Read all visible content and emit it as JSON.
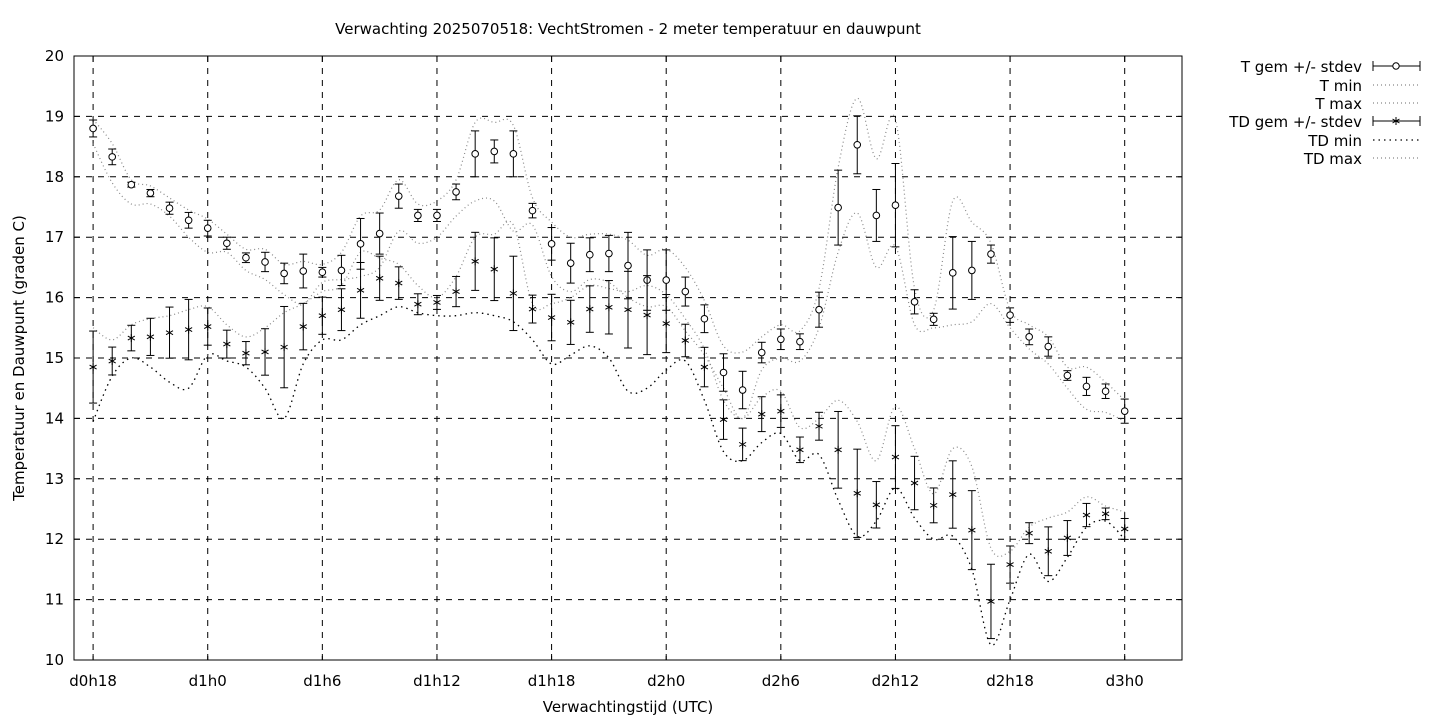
{
  "chart_data": {
    "type": "line",
    "title": "Verwachting 2025070518: VechtStromen - 2 meter temperatuur en dauwpunt",
    "xlabel": "Verwachtingstijd (UTC)",
    "ylabel": "Temperatuur en Dauwpunt (graden C)",
    "xlim": [
      17,
      75
    ],
    "ylim": [
      10,
      20
    ],
    "grid": true,
    "legend_position": "top-right-outside",
    "x_ticks": [
      {
        "v": 18,
        "label": "d0h18"
      },
      {
        "v": 24,
        "label": "d1h0"
      },
      {
        "v": 30,
        "label": "d1h6"
      },
      {
        "v": 36,
        "label": "d1h12"
      },
      {
        "v": 42,
        "label": "d1h18"
      },
      {
        "v": 48,
        "label": "d2h0"
      },
      {
        "v": 54,
        "label": "d2h6"
      },
      {
        "v": 60,
        "label": "d2h12"
      },
      {
        "v": 66,
        "label": "d2h18"
      },
      {
        "v": 72,
        "label": "d3h0"
      }
    ],
    "y_ticks": [
      10,
      11,
      12,
      13,
      14,
      15,
      16,
      17,
      18,
      19,
      20
    ],
    "x": [
      18,
      19,
      20,
      21,
      22,
      23,
      24,
      25,
      26,
      27,
      28,
      29,
      30,
      31,
      32,
      33,
      34,
      35,
      36,
      37,
      38,
      39,
      40,
      41,
      42,
      43,
      44,
      45,
      46,
      47,
      48,
      49,
      50,
      51,
      52,
      53,
      54,
      55,
      56,
      57,
      58,
      59,
      60,
      61,
      62,
      63,
      64,
      65,
      66,
      67,
      68,
      69,
      70,
      71,
      72
    ],
    "legend": {
      "t_mean": "T gem +/- stdev",
      "t_min": "T min",
      "t_max": "T max",
      "td_mean": "TD gem +/- stdev",
      "td_min": "TD min",
      "td_max": "TD max"
    },
    "series": [
      {
        "name": "T gem +/- stdev",
        "marker": "circle",
        "values": [
          18.8,
          18.33,
          17.87,
          17.73,
          17.48,
          17.28,
          17.15,
          16.9,
          16.66,
          16.59,
          16.4,
          16.44,
          16.42,
          16.45,
          16.89,
          17.06,
          17.68,
          17.36,
          17.36,
          17.75,
          18.38,
          18.42,
          18.38,
          17.44,
          16.89,
          16.57,
          16.71,
          16.73,
          16.53,
          16.29,
          16.29,
          16.1,
          15.65,
          14.76,
          14.47,
          15.09,
          15.31,
          15.27,
          15.8,
          17.49,
          18.53,
          17.36,
          17.53,
          15.93,
          15.64,
          16.41,
          16.45,
          16.72,
          15.71,
          15.35,
          15.19,
          14.71,
          14.53,
          14.45,
          14.12
        ],
        "stdev": [
          0.14,
          0.13,
          0.04,
          0.06,
          0.1,
          0.13,
          0.13,
          0.1,
          0.08,
          0.16,
          0.17,
          0.28,
          0.08,
          0.25,
          0.42,
          0.34,
          0.2,
          0.1,
          0.1,
          0.13,
          0.38,
          0.19,
          0.38,
          0.12,
          0.27,
          0.33,
          0.28,
          0.3,
          0.55,
          0.5,
          0.5,
          0.24,
          0.23,
          0.31,
          0.31,
          0.17,
          0.17,
          0.13,
          0.29,
          0.62,
          0.48,
          0.43,
          0.69,
          0.2,
          0.1,
          0.6,
          0.48,
          0.15,
          0.12,
          0.13,
          0.16,
          0.08,
          0.15,
          0.12,
          0.2
        ]
      },
      {
        "name": "T min",
        "values": [
          18.55,
          17.9,
          17.55,
          17.55,
          17.35,
          17.0,
          16.75,
          16.75,
          16.45,
          16.3,
          16.05,
          15.9,
          16.25,
          16.3,
          16.35,
          16.5,
          17.1,
          16.9,
          17.0,
          17.35,
          17.6,
          17.6,
          17.1,
          17.2,
          16.35,
          16.1,
          16.3,
          16.25,
          16.0,
          15.85,
          15.85,
          15.45,
          15.05,
          14.5,
          14.0,
          14.8,
          15.0,
          14.95,
          15.5,
          16.75,
          17.4,
          16.5,
          16.85,
          15.55,
          15.5,
          15.55,
          15.6,
          15.9,
          15.5,
          15.15,
          14.9,
          14.5,
          14.15,
          14.1,
          13.95
        ]
      },
      {
        "name": "T max",
        "values": [
          18.95,
          18.55,
          17.95,
          17.85,
          17.65,
          17.45,
          17.3,
          17.05,
          16.8,
          16.8,
          16.55,
          16.6,
          16.55,
          16.75,
          17.35,
          17.45,
          17.95,
          17.55,
          17.6,
          17.95,
          18.9,
          18.9,
          18.85,
          17.65,
          17.25,
          17.0,
          17.05,
          17.05,
          16.95,
          16.7,
          16.8,
          16.5,
          15.95,
          15.2,
          15.1,
          15.35,
          15.55,
          15.45,
          16.15,
          18.15,
          19.3,
          18.3,
          18.95,
          16.15,
          15.8,
          17.6,
          17.25,
          16.9,
          15.8,
          15.55,
          15.35,
          14.85,
          14.85,
          14.6,
          14.3
        ]
      },
      {
        "name": "TD gem +/- stdev",
        "marker": "star",
        "values": [
          14.85,
          14.95,
          15.33,
          15.35,
          15.42,
          15.47,
          15.52,
          15.23,
          15.08,
          15.1,
          15.18,
          15.52,
          15.7,
          15.8,
          16.12,
          16.32,
          16.24,
          15.89,
          15.92,
          16.1,
          16.6,
          16.47,
          16.07,
          15.81,
          15.67,
          15.59,
          15.81,
          15.84,
          15.8,
          15.71,
          15.57,
          15.29,
          14.85,
          13.98,
          13.57,
          14.07,
          14.12,
          13.48,
          13.87,
          13.48,
          12.76,
          12.57,
          13.36,
          12.93,
          12.56,
          12.74,
          12.15,
          10.97,
          11.58,
          12.1,
          11.8,
          12.02,
          12.4,
          12.42,
          12.17
        ]
      },
      {
        "name": "TD min",
        "values": [
          13.95,
          14.7,
          15.0,
          14.85,
          14.6,
          14.5,
          15.05,
          14.95,
          14.85,
          14.5,
          14.0,
          14.9,
          15.3,
          15.3,
          15.55,
          15.7,
          15.85,
          15.75,
          15.7,
          15.7,
          15.75,
          15.7,
          15.6,
          15.3,
          14.9,
          15.05,
          15.2,
          15.0,
          14.45,
          14.5,
          14.8,
          14.95,
          14.3,
          13.45,
          13.3,
          13.6,
          13.75,
          13.3,
          13.4,
          12.65,
          12.05,
          12.3,
          12.85,
          12.35,
          12.0,
          12.05,
          11.5,
          10.25,
          11.0,
          11.75,
          11.3,
          11.7,
          12.2,
          12.3,
          12.0
        ]
      },
      {
        "name": "TD max",
        "values": [
          15.5,
          15.3,
          15.55,
          15.65,
          15.7,
          15.8,
          15.85,
          15.55,
          15.35,
          15.5,
          15.75,
          15.9,
          16.1,
          16.2,
          16.75,
          16.65,
          16.55,
          16.2,
          16.0,
          16.35,
          17.0,
          17.05,
          17.2,
          15.9,
          15.9,
          16.0,
          16.2,
          16.15,
          16.1,
          16.2,
          16.05,
          15.65,
          15.15,
          14.3,
          14.0,
          14.35,
          14.45,
          13.85,
          14.0,
          14.3,
          13.95,
          13.3,
          14.2,
          13.5,
          12.75,
          13.5,
          13.2,
          11.85,
          11.8,
          12.2,
          12.35,
          12.45,
          12.7,
          12.55,
          12.45
        ]
      }
    ]
  }
}
